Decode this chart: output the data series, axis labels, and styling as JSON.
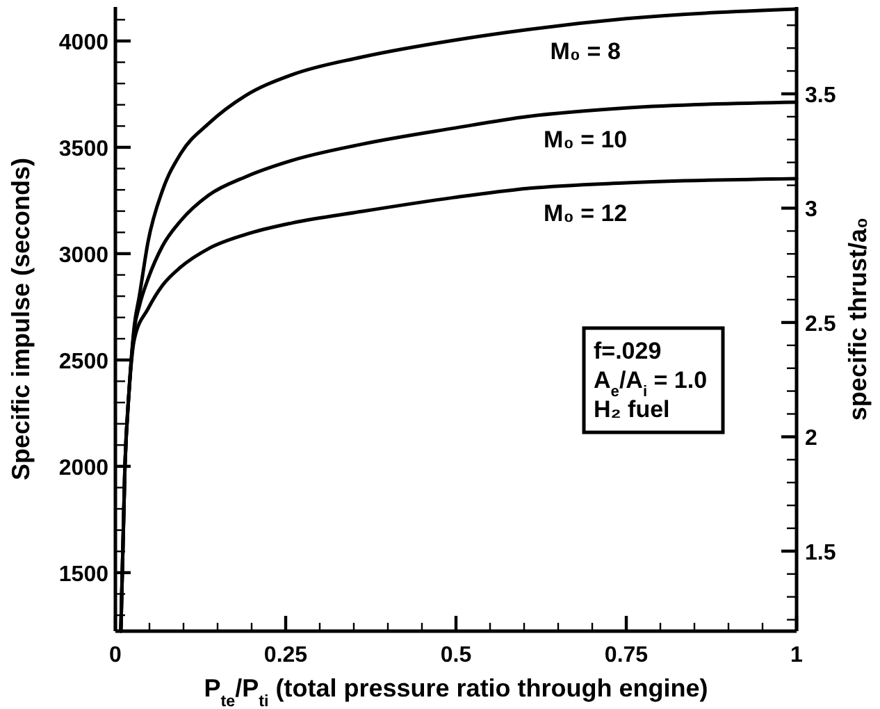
{
  "chart_data": {
    "type": "line",
    "xlabel": "P$_{te}$/P$_{ti}$ (total pressure ratio through engine)",
    "ylabel": "Specific impulse (seconds)",
    "y2label": "specific thrust/a₀",
    "xlim": [
      0,
      1
    ],
    "ylim": [
      1225,
      4160
    ],
    "y2lim": [
      1.15,
      3.88
    ],
    "xticks": [
      0,
      {
        "value": 0.05,
        "label": null
      },
      {
        "value": 0.1,
        "label": null
      },
      {
        "value": 0.15,
        "label": null
      },
      {
        "value": 0.2,
        "label": null
      },
      0.25,
      {
        "value": 0.3,
        "label": null
      },
      {
        "value": 0.35,
        "label": null
      },
      {
        "value": 0.4,
        "label": null
      },
      {
        "value": 0.45,
        "label": null
      },
      0.5,
      {
        "value": 0.55,
        "label": null
      },
      {
        "value": 0.6,
        "label": null
      },
      {
        "value": 0.65,
        "label": null
      },
      {
        "value": 0.7,
        "label": null
      },
      0.75,
      {
        "value": 0.8,
        "label": null
      },
      {
        "value": 0.85,
        "label": null
      },
      {
        "value": 0.9,
        "label": null
      },
      {
        "value": 0.95,
        "label": null
      },
      1
    ],
    "yticks": [
      {
        "value": 1300,
        "label": null
      },
      {
        "value": 1400,
        "label": null
      },
      1500,
      {
        "value": 1600,
        "label": null
      },
      {
        "value": 1700,
        "label": null
      },
      {
        "value": 1800,
        "label": null
      },
      {
        "value": 1900,
        "label": null
      },
      2000,
      {
        "value": 2100,
        "label": null
      },
      {
        "value": 2200,
        "label": null
      },
      {
        "value": 2300,
        "label": null
      },
      {
        "value": 2400,
        "label": null
      },
      2500,
      {
        "value": 2600,
        "label": null
      },
      {
        "value": 2700,
        "label": null
      },
      {
        "value": 2800,
        "label": null
      },
      {
        "value": 2900,
        "label": null
      },
      3000,
      {
        "value": 3100,
        "label": null
      },
      {
        "value": 3200,
        "label": null
      },
      {
        "value": 3300,
        "label": null
      },
      {
        "value": 3400,
        "label": null
      },
      3500,
      {
        "value": 3600,
        "label": null
      },
      {
        "value": 3700,
        "label": null
      },
      {
        "value": 3800,
        "label": null
      },
      {
        "value": 3900,
        "label": null
      },
      4000,
      {
        "value": 4100,
        "label": null
      }
    ],
    "y2ticks": [
      {
        "value": 1.2,
        "label": null
      },
      {
        "value": 1.3,
        "label": null
      },
      {
        "value": 1.4,
        "label": null
      },
      1.5,
      {
        "value": 1.6,
        "label": null
      },
      {
        "value": 1.7,
        "label": null
      },
      {
        "value": 1.8,
        "label": null
      },
      {
        "value": 1.9,
        "label": null
      },
      2,
      {
        "value": 2.1,
        "label": null
      },
      {
        "value": 2.2,
        "label": null
      },
      {
        "value": 2.3,
        "label": null
      },
      {
        "value": 2.4,
        "label": null
      },
      2.5,
      {
        "value": 2.6,
        "label": null
      },
      {
        "value": 2.7,
        "label": null
      },
      {
        "value": 2.8,
        "label": null
      },
      {
        "value": 2.9,
        "label": null
      },
      3,
      {
        "value": 3.1,
        "label": null
      },
      {
        "value": 3.2,
        "label": null
      },
      {
        "value": 3.3,
        "label": null
      },
      {
        "value": 3.4,
        "label": null
      },
      3.5,
      {
        "value": 3.6,
        "label": null
      },
      {
        "value": 3.7,
        "label": null
      },
      {
        "value": 3.8,
        "label": null
      }
    ],
    "grid": false,
    "legend": false,
    "marker": "none",
    "line_style": "solid",
    "series": [
      {
        "name": "M₀ = 8",
        "color": "#000000",
        "x": [
          0.008,
          0.014,
          0.02,
          0.028,
          0.035,
          0.048,
          0.069,
          0.096,
          0.137,
          0.191,
          0.259,
          0.361,
          0.5,
          0.606,
          0.75,
          1
        ],
        "values": [
          1225,
          2000,
          2350,
          2667,
          2797,
          3057,
          3296,
          3471,
          3612,
          3743,
          3841,
          3924,
          4005,
          4054,
          4105,
          4150
        ]
      },
      {
        "name": "M₀ = 10",
        "color": "#000000",
        "x": [
          0.008,
          0.014,
          0.02,
          0.028,
          0.035,
          0.048,
          0.069,
          0.096,
          0.137,
          0.191,
          0.259,
          0.361,
          0.497,
          0.606,
          0.75,
          1
        ],
        "values": [
          1225,
          2000,
          2350,
          2650,
          2752,
          2882,
          3035,
          3155,
          3275,
          3361,
          3438,
          3514,
          3590,
          3645,
          3685,
          3712
        ]
      },
      {
        "name": "M₀ = 12",
        "color": "#000000",
        "x": [
          0.008,
          0.014,
          0.02,
          0.028,
          0.048,
          0.069,
          0.096,
          0.137,
          0.191,
          0.259,
          0.361,
          0.497,
          0.606,
          0.75,
          1
        ],
        "values": [
          1225,
          2000,
          2350,
          2600,
          2741,
          2850,
          2937,
          3024,
          3090,
          3144,
          3198,
          3264,
          3307,
          3333,
          3353
        ]
      }
    ],
    "annotations": [
      "f=.029",
      "A$_{e}$/A$_{i}$ = 1.0",
      "H₂ fuel"
    ]
  }
}
